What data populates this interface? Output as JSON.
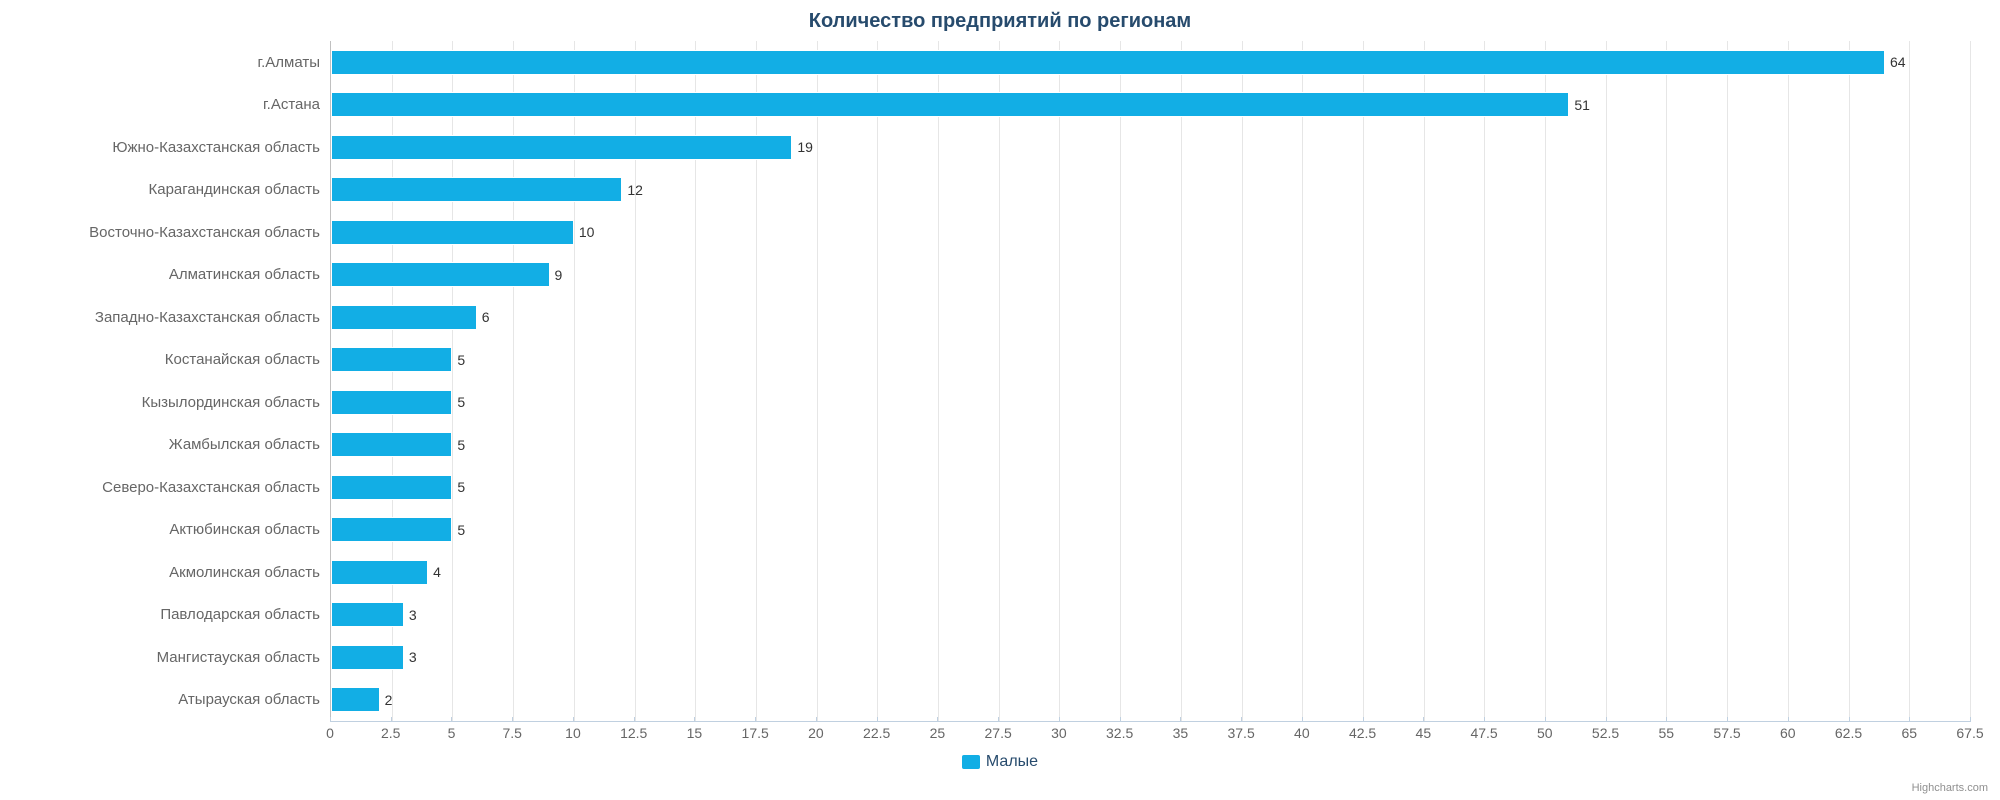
{
  "chart": {
    "type": "bar",
    "title": "Количество предприятий по регионам",
    "title_fontsize": 20,
    "title_color": "#274b6d",
    "background_color": "#ffffff",
    "grid_color": "#e6e6e6",
    "axis_line_color": "#c0d0e0",
    "bar_color": "#12aee5",
    "bar_border_color": "#ffffff",
    "label_color": "#666666",
    "label_fontsize": 15,
    "data_label_color": "#333333",
    "data_label_fontsize": 14,
    "tick_fontsize": 14,
    "bar_height_pct": 58,
    "xlim": [
      0,
      67.5
    ],
    "xtick_step": 2.5,
    "xticks": [
      "0",
      "2.5",
      "5",
      "7.5",
      "10",
      "12.5",
      "15",
      "17.5",
      "20",
      "22.5",
      "25",
      "27.5",
      "30",
      "32.5",
      "35",
      "37.5",
      "40",
      "42.5",
      "45",
      "47.5",
      "50",
      "52.5",
      "55",
      "57.5",
      "60",
      "62.5",
      "65",
      "67.5"
    ],
    "categories": [
      "г.Алматы",
      "г.Астана",
      "Южно-Казахстанская область",
      "Карагандинская область",
      "Восточно-Казахстанская область",
      "Алматинская область",
      "Западно-Казахстанская область",
      "Костанайская область",
      "Кызылординская область",
      "Жамбылская область",
      "Северо-Казахстанская область",
      "Актюбинская область",
      "Акмолинская область",
      "Павлодарская область",
      "Мангистауская область",
      "Атырауская область"
    ],
    "values": [
      64,
      51,
      19,
      12,
      10,
      9,
      6,
      5,
      5,
      5,
      5,
      5,
      4,
      3,
      3,
      2
    ],
    "legend": {
      "label": "Малые",
      "swatch_color": "#12aee5",
      "text_color": "#274b6d",
      "fontsize": 16
    },
    "credits": "Highcharts.com"
  }
}
